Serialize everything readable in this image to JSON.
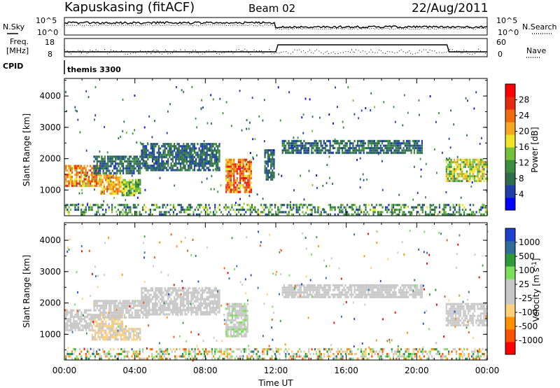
{
  "header": {
    "title": "Kapuskasing (fitACF)",
    "beam": "Beam 02",
    "date": "22/Aug/2011"
  },
  "nsky_panel": {
    "left_label": "N.Sky",
    "right_label": "N.Search",
    "y_ticks_left": [
      "10^5",
      "10^0"
    ],
    "y_ticks_right": [
      "10^5",
      "10^0"
    ]
  },
  "freq_panel": {
    "left_label_1": "Freq.",
    "left_label_2": "[MHz]",
    "right_label": "Nave",
    "y_ticks_left": [
      "18",
      "8"
    ],
    "y_ticks_right": [
      "60",
      "0"
    ]
  },
  "cpid": {
    "label": "CPID",
    "value": "themis 3300"
  },
  "chart_data": [
    {
      "type": "heatmap",
      "name": "power",
      "ylabel": "Slant Range [km]",
      "xlabel": "",
      "x_ticks": [
        "00:00",
        "04:00",
        "08:00",
        "12:00",
        "16:00",
        "20:00",
        "00:00"
      ],
      "xlim_hours": [
        0,
        24
      ],
      "y_ticks": [
        "1000",
        "2000",
        "3000",
        "4000"
      ],
      "ylim_km": [
        180,
        4560
      ],
      "colorbar": {
        "label": "Power [dB]",
        "ticks": [
          "28",
          "24",
          "20",
          "16",
          "12",
          "8",
          "4"
        ],
        "range": [
          0,
          30
        ]
      },
      "regions": [
        {
          "t0": 0.0,
          "t1": 2.0,
          "r0": 1100,
          "r1": 1800,
          "v0": 14,
          "v1": 26
        },
        {
          "t0": 2.0,
          "t1": 3.2,
          "r0": 850,
          "r1": 1500,
          "v0": 16,
          "v1": 24
        },
        {
          "t0": 3.2,
          "t1": 4.3,
          "r0": 800,
          "r1": 1350,
          "v0": 8,
          "v1": 18
        },
        {
          "t0": 1.6,
          "t1": 4.3,
          "r0": 1500,
          "r1": 2100,
          "v0": 4,
          "v1": 10
        },
        {
          "t0": 4.3,
          "t1": 8.8,
          "r0": 1600,
          "r1": 2500,
          "v0": 4,
          "v1": 10
        },
        {
          "t0": 9.1,
          "t1": 10.6,
          "r0": 900,
          "r1": 2000,
          "v0": 16,
          "v1": 28
        },
        {
          "t0": 11.3,
          "t1": 11.9,
          "r0": 1300,
          "r1": 2300,
          "v0": 4,
          "v1": 10
        },
        {
          "t0": 12.3,
          "t1": 20.3,
          "r0": 2150,
          "r1": 2600,
          "v0": 4,
          "v1": 10
        },
        {
          "t0": 21.6,
          "t1": 24.0,
          "r0": 1250,
          "r1": 2000,
          "v0": 10,
          "v1": 20
        },
        {
          "t0": 0.0,
          "t1": 24.0,
          "r0": 180,
          "r1": 560,
          "v0": 4,
          "v1": 16
        }
      ]
    },
    {
      "type": "heatmap",
      "name": "velocity",
      "ylabel": "Slant Range [km]",
      "xlabel": "Time UT",
      "x_ticks": [
        "00:00",
        "04:00",
        "08:00",
        "12:00",
        "16:00",
        "20:00",
        "00:00"
      ],
      "xlim_hours": [
        0,
        24
      ],
      "y_ticks": [
        "1000",
        "2000",
        "3000",
        "4000"
      ],
      "ylim_km": [
        180,
        4560
      ],
      "colorbar": {
        "label": "Velocity [m s^-1]",
        "ticks": [
          "1000",
          "500",
          "100",
          "25",
          "-25",
          "-100",
          "-500",
          "-1000"
        ],
        "range": [
          -1200,
          1200
        ]
      },
      "regions": [
        {
          "t0": 0.0,
          "t1": 1.5,
          "r0": 1100,
          "r1": 1800,
          "v0": -60,
          "v1": 20
        },
        {
          "t0": 1.5,
          "t1": 3.3,
          "r0": 800,
          "r1": 1650,
          "v0": -400,
          "v1": -80
        },
        {
          "t0": 3.3,
          "t1": 4.3,
          "r0": 800,
          "r1": 1200,
          "v0": -400,
          "v1": -100
        },
        {
          "t0": 1.6,
          "t1": 4.8,
          "r0": 1500,
          "r1": 2100,
          "v0": -20,
          "v1": 20
        },
        {
          "t0": 4.3,
          "t1": 8.8,
          "r0": 1600,
          "r1": 2500,
          "v0": -20,
          "v1": 20
        },
        {
          "t0": 9.1,
          "t1": 10.4,
          "r0": 900,
          "r1": 2000,
          "v0": 30,
          "v1": 300
        },
        {
          "t0": 12.3,
          "t1": 20.3,
          "r0": 2150,
          "r1": 2600,
          "v0": -20,
          "v1": 20
        },
        {
          "t0": 21.6,
          "t1": 24.0,
          "r0": 1250,
          "r1": 2000,
          "v0": -20,
          "v1": 20
        },
        {
          "t0": 0.0,
          "t1": 24.0,
          "r0": 180,
          "r1": 560,
          "v0": -800,
          "v1": 800
        }
      ]
    }
  ],
  "colors": {
    "power_scale": [
      "#0000ff",
      "#1f3fa8",
      "#2f6e4c",
      "#3c8f3c",
      "#74c23a",
      "#f0e42a",
      "#f5a623",
      "#f06a10",
      "#e62a10",
      "#ff0000"
    ],
    "velocity_scale": [
      "#ff0000",
      "#ff5000",
      "#ff9000",
      "#ffd07a",
      "#c8c8c8",
      "#c8c8c8",
      "#7ae05a",
      "#2f9a3a",
      "#2f6e9a",
      "#1f3fcf"
    ]
  }
}
